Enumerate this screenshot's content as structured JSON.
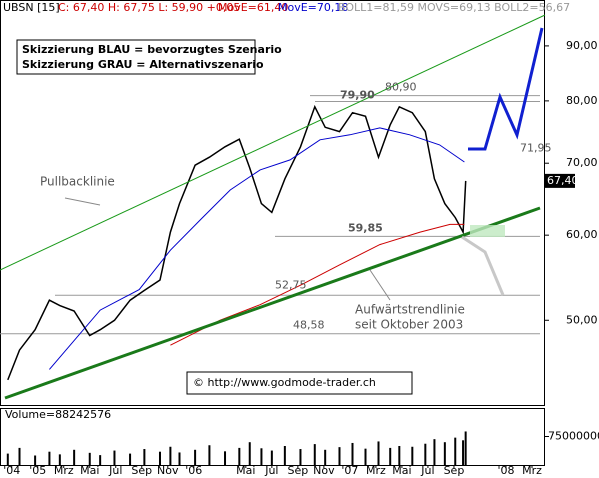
{
  "header": {
    "symbol": "UBSN [15]",
    "quote": "C: 67,40 H: 67,75 L: 59,90 +0,05",
    "ma1": "MovE=61,40",
    "ma2": "MovE=70,18",
    "boll": "BOLL1=81,59 MOVS=69,13 BOLL2=56,67"
  },
  "notes": {
    "blue": "Skizzierung BLAU = bevorzugtes Szenario",
    "gray": "Skizzierung GRAU = Alternativszenario",
    "pullback": "Pullbacklinie",
    "trend1": "Aufwärtstrendlinie",
    "trend2": "seit Oktober 2003",
    "copyright": "© http://www.godmode-trader.ch"
  },
  "chart_data": [
    {
      "type": "line",
      "log_scale": true,
      "xlim": [
        -2.9,
        39
      ],
      "ylim": [
        41.7,
        99.3
      ],
      "xticks": [
        {
          "value": -2,
          "label": "'04"
        },
        {
          "value": 0,
          "label": "'05"
        },
        {
          "value": 2,
          "label": "Mrz"
        },
        {
          "value": 4,
          "label": "Mai"
        },
        {
          "value": 6,
          "label": "Jul"
        },
        {
          "value": 8,
          "label": "Sep"
        },
        {
          "value": 10,
          "label": "Nov"
        },
        {
          "value": 12,
          "label": "'06"
        },
        {
          "value": 16,
          "label": "Mai"
        },
        {
          "value": 18,
          "label": "Jul"
        },
        {
          "value": 20,
          "label": "Sep"
        },
        {
          "value": 22,
          "label": "Nov"
        },
        {
          "value": 24,
          "label": "'07"
        },
        {
          "value": 26,
          "label": "Mrz"
        },
        {
          "value": 28,
          "label": "Mai"
        },
        {
          "value": 30,
          "label": "Jul"
        },
        {
          "value": 32,
          "label": "Sep"
        },
        {
          "value": 36,
          "label": "'08"
        },
        {
          "value": 38,
          "label": "Mrz"
        }
      ],
      "yticks": [
        {
          "value": 50,
          "label": "50,00"
        },
        {
          "value": 60,
          "label": "60,00"
        },
        {
          "value": 70,
          "label": "70,00"
        },
        {
          "value": 80,
          "label": "80,00"
        },
        {
          "value": 90,
          "label": "90,00"
        }
      ],
      "series": [
        {
          "color": "#000000",
          "x": [
            -2.3,
            -1.4,
            -0.2,
            0.9,
            1.7,
            2.8,
            4.0,
            4.8,
            5.9,
            7.1,
            8.2,
            9.4,
            10.2,
            10.9,
            12.1,
            13.2,
            14.4,
            15.5,
            16.3,
            17.2,
            18.0,
            19.0,
            20.2,
            21.3,
            22.1,
            23.2,
            24.2,
            25.2,
            26.2,
            27.1,
            27.8,
            28.8,
            29.8,
            30.5,
            31.3,
            32.1,
            32.7,
            32.9
          ],
          "values": [
            44.0,
            46.9,
            49.0,
            52.2,
            51.6,
            51.0,
            48.4,
            49.0,
            50.0,
            52.2,
            53.3,
            54.5,
            60.4,
            64.2,
            69.7,
            70.9,
            72.5,
            73.7,
            69.3,
            64.2,
            63.0,
            67.7,
            72.5,
            79.0,
            75.6,
            74.9,
            78.0,
            77.4,
            70.9,
            76.0,
            79.0,
            78.0,
            74.9,
            67.7,
            64.2,
            62.3,
            60.4,
            67.4
          ]
        },
        {
          "color": "#0000cc",
          "x": [
            0.9,
            4.8,
            7.8,
            10.2,
            12.5,
            14.8,
            17.1,
            19.4,
            21.7,
            24.0,
            26.3,
            28.6,
            30.9,
            32.8
          ],
          "values": [
            45.0,
            51.1,
            53.4,
            58.1,
            62.0,
            66.1,
            69.0,
            70.5,
            73.6,
            74.4,
            75.5,
            74.4,
            72.8,
            70.18
          ]
        },
        {
          "color": "#cc0000",
          "x": [
            10.2,
            14.0,
            17.1,
            20.2,
            23.2,
            26.3,
            29.4,
            31.7,
            32.8
          ],
          "values": [
            47.4,
            50.0,
            51.7,
            53.9,
            56.3,
            58.8,
            60.4,
            61.4,
            61.4
          ]
        }
      ],
      "levels": [
        {
          "value": 80.9,
          "label": "80,90"
        },
        {
          "value": 79.9,
          "label": "79,90"
        },
        {
          "value": 71.95,
          "label": "71,95"
        },
        {
          "value": 59.85,
          "label": "59,85"
        },
        {
          "value": 52.75,
          "label": "52,75"
        },
        {
          "value": 48.58,
          "label": "48,58"
        }
      ],
      "last_price": {
        "value": 67.4,
        "label": "67,40"
      }
    },
    {
      "type": "bar",
      "title": "Volume=88242576",
      "color": "#000000",
      "ylim": [
        0,
        150000000
      ],
      "yticks": [
        75000000
      ],
      "x": [
        -2.3,
        -1.4,
        -0.2,
        0.9,
        1.7,
        2.8,
        4.0,
        4.8,
        5.9,
        7.1,
        8.2,
        9.4,
        10.2,
        10.9,
        12.1,
        13.2,
        14.4,
        15.5,
        16.3,
        17.2,
        18.0,
        19.0,
        20.2,
        21.3,
        22.1,
        23.2,
        24.2,
        25.2,
        26.2,
        27.1,
        27.8,
        28.8,
        29.8,
        30.5,
        31.3,
        32.1,
        32.7,
        32.9
      ],
      "values": [
        30000000,
        45000000,
        25000000,
        35000000,
        28000000,
        40000000,
        32000000,
        26000000,
        38000000,
        30000000,
        42000000,
        35000000,
        48000000,
        33000000,
        40000000,
        52000000,
        36000000,
        45000000,
        60000000,
        44000000,
        38000000,
        50000000,
        42000000,
        55000000,
        40000000,
        47000000,
        58000000,
        43000000,
        62000000,
        45000000,
        50000000,
        48000000,
        56000000,
        68000000,
        60000000,
        72000000,
        65000000,
        88242576
      ]
    }
  ]
}
